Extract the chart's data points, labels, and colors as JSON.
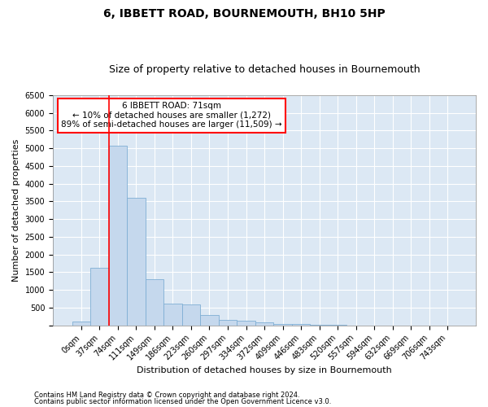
{
  "title": "6, IBBETT ROAD, BOURNEMOUTH, BH10 5HP",
  "subtitle": "Size of property relative to detached houses in Bournemouth",
  "xlabel": "Distribution of detached houses by size in Bournemouth",
  "ylabel": "Number of detached properties",
  "footer_line1": "Contains HM Land Registry data © Crown copyright and database right 2024.",
  "footer_line2": "Contains public sector information licensed under the Open Government Licence v3.0.",
  "bar_labels": [
    "0sqm",
    "37sqm",
    "74sqm",
    "111sqm",
    "149sqm",
    "186sqm",
    "223sqm",
    "260sqm",
    "297sqm",
    "334sqm",
    "372sqm",
    "409sqm",
    "446sqm",
    "483sqm",
    "520sqm",
    "557sqm",
    "594sqm",
    "632sqm",
    "669sqm",
    "706sqm",
    "743sqm"
  ],
  "bar_values": [
    100,
    1620,
    5060,
    3600,
    1300,
    620,
    590,
    300,
    150,
    130,
    80,
    50,
    30,
    20,
    10,
    5,
    3,
    2,
    1,
    0,
    0
  ],
  "bar_color": "#c5d8ed",
  "bar_edge_color": "#7faed4",
  "red_line_x": 1.5,
  "annotation_text": "6 IBBETT ROAD: 71sqm\n← 10% of detached houses are smaller (1,272)\n89% of semi-detached houses are larger (11,509) →",
  "ylim": [
    0,
    6500
  ],
  "yticks": [
    0,
    500,
    1000,
    1500,
    2000,
    2500,
    3000,
    3500,
    4000,
    4500,
    5000,
    5500,
    6000,
    6500
  ],
  "bg_color": "#dce8f4",
  "grid_color": "#ffffff",
  "fig_bg_color": "#ffffff",
  "title_fontsize": 10,
  "subtitle_fontsize": 9,
  "tick_fontsize": 7,
  "ylabel_fontsize": 8,
  "xlabel_fontsize": 8,
  "footer_fontsize": 6,
  "annotation_fontsize": 7.5
}
